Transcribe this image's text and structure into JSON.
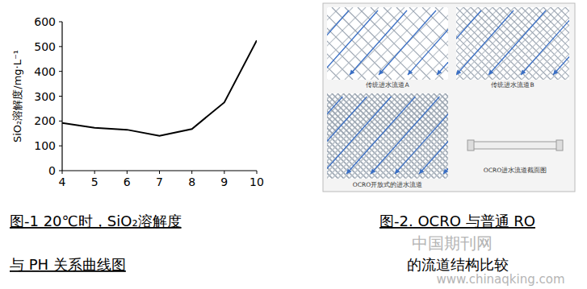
{
  "chart_data": {
    "type": "line",
    "y_label": "SiO₂溶解度/mg·L⁻¹",
    "x": [
      4,
      5,
      6,
      7,
      8,
      9,
      10
    ],
    "values": [
      192,
      173,
      165,
      140,
      168,
      275,
      525
    ],
    "color": "#000000",
    "xlim": [
      4,
      10
    ],
    "xticks": [
      4,
      5,
      6,
      7,
      8,
      9,
      10
    ],
    "ylim": [
      0,
      600
    ],
    "yticks": [
      0,
      100,
      200,
      300,
      400,
      500,
      600
    ],
    "grid": false
  },
  "figure2": {
    "panels": [
      {
        "label": "传统进水流道A"
      },
      {
        "label": "传统进水流道B"
      },
      {
        "label": "OCRO开放式的进水流道"
      },
      {
        "label": "OCRO进水流道截面图"
      }
    ]
  },
  "captions": {
    "figure1": [
      "图-1   20℃时，SiO₂溶解度",
      "与 PH 关系曲线图"
    ],
    "figure2": [
      "图-2. OCRO 与普通 RO",
      "的流道结构比较"
    ]
  },
  "watermark": [
    "中国期刊网",
    "www.chinaqking.com"
  ]
}
